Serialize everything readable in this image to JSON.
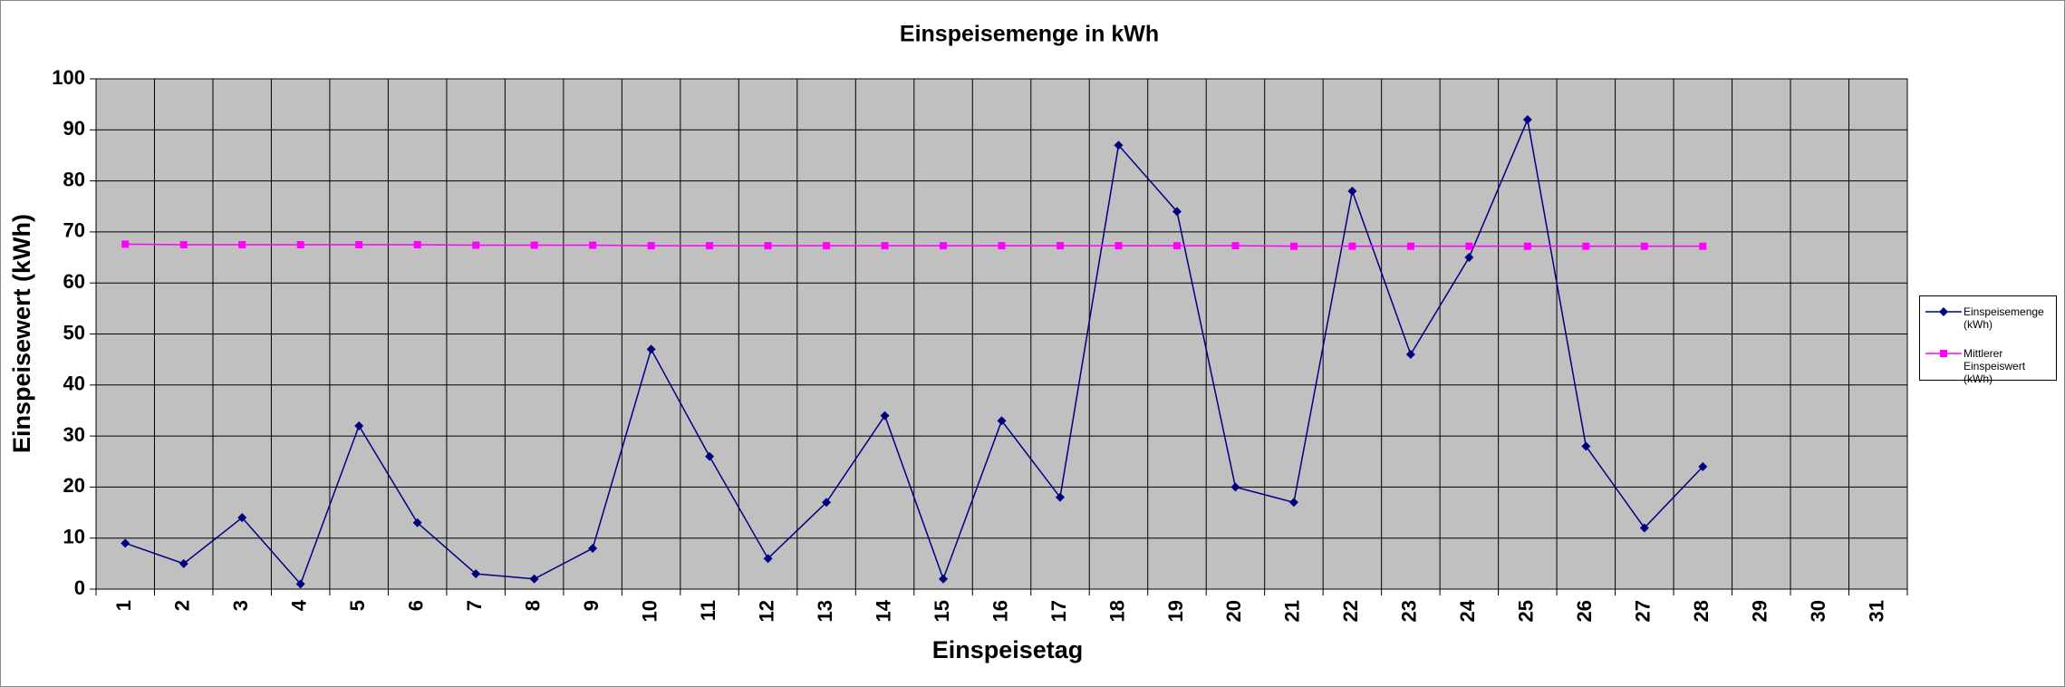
{
  "chart_data": {
    "type": "line",
    "title": "Einspeisemenge in kWh",
    "x_label": "Einspeisetag",
    "y_label": "Einspeisewert  (kWh)",
    "categories": [
      "1",
      "2",
      "3",
      "4",
      "5",
      "6",
      "7",
      "8",
      "9",
      "10",
      "11",
      "12",
      "13",
      "14",
      "15",
      "16",
      "17",
      "18",
      "19",
      "20",
      "21",
      "22",
      "23",
      "24",
      "25",
      "26",
      "27",
      "28",
      "29",
      "30",
      "31"
    ],
    "series": [
      {
        "name": "Einspeisemenge (kWh)",
        "color": "#000080",
        "marker": "diamond",
        "values": [
          9,
          5,
          14,
          1,
          32,
          13,
          3,
          2,
          8,
          47,
          26,
          6,
          17,
          34,
          2,
          33,
          18,
          87,
          74,
          20,
          17,
          78,
          46,
          65,
          92,
          28,
          12,
          24,
          null,
          null,
          null
        ]
      },
      {
        "name": "Mittlerer Einspeiswert (kWh)",
        "color": "#ff00ff",
        "marker": "square",
        "values": [
          67.6,
          67.5,
          67.5,
          67.5,
          67.5,
          67.5,
          67.4,
          67.4,
          67.4,
          67.3,
          67.3,
          67.3,
          67.3,
          67.3,
          67.3,
          67.3,
          67.3,
          67.3,
          67.3,
          67.3,
          67.2,
          67.2,
          67.2,
          67.2,
          67.2,
          67.2,
          67.2,
          67.2,
          null,
          null,
          null
        ]
      }
    ],
    "ylim": [
      0,
      100
    ],
    "yticks": [
      0,
      10,
      20,
      30,
      40,
      50,
      60,
      70,
      80,
      90,
      100
    ],
    "grid": true,
    "plot_background": "#c0c0c0",
    "legend": "right"
  }
}
